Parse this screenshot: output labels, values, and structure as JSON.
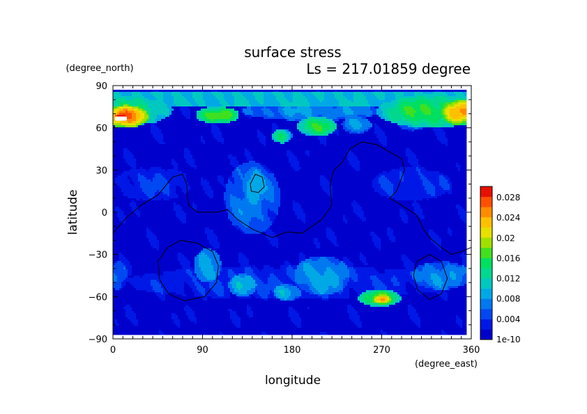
{
  "chart_data": {
    "type": "heatmap",
    "title": "surface stress",
    "subtitle": "Ls = 217.01859 degree",
    "xlabel": "longitude",
    "ylabel": "latitude",
    "x_unit": "(degree_east)",
    "y_unit": "(degree_north)",
    "xlim": [
      0,
      360
    ],
    "ylim": [
      -90,
      90
    ],
    "x_ticks": [
      "0",
      "90",
      "180",
      "270",
      "360"
    ],
    "y_ticks": [
      "90",
      "60",
      "30",
      "0",
      "−30",
      "−60",
      "−90"
    ],
    "colorbar": {
      "labels": [
        "0.028",
        "0.024",
        "0.02",
        "0.016",
        "0.012",
        "0.008",
        "0.004",
        "1e-10"
      ],
      "min": 0,
      "max": 0.03,
      "colors": [
        "#0000cc",
        "#0018e6",
        "#0048f2",
        "#0078f0",
        "#00a8e6",
        "#00c8c0",
        "#00d890",
        "#00e060",
        "#40e020",
        "#a0e000",
        "#e8e000",
        "#ffc000",
        "#ff8c00",
        "#ff5000",
        "#e81000"
      ]
    },
    "background_value": 0.001,
    "features": [
      {
        "name": "north-polar-band",
        "shape": "rect",
        "lon": [
          0,
          360
        ],
        "lat": [
          75,
          86
        ],
        "value": 0.01
      },
      {
        "name": "north-band-east",
        "shape": "ellipse",
        "lon": 320,
        "lat": 72,
        "rlon": 55,
        "rlat": 12,
        "value": 0.016
      },
      {
        "name": "north-band-west",
        "shape": "ellipse",
        "lon": 20,
        "lat": 73,
        "rlon": 40,
        "rlat": 11,
        "value": 0.014
      },
      {
        "name": "north-wave-mid",
        "shape": "ellipse",
        "lon": 200,
        "lat": 72,
        "rlon": 70,
        "rlat": 7,
        "value": 0.008
      },
      {
        "name": "north-max-west",
        "shape": "ellipse",
        "lon": 14,
        "lat": 68,
        "rlon": 22,
        "rlat": 8,
        "value": 0.026
      },
      {
        "name": "north-max-east",
        "shape": "ellipse",
        "lon": 348,
        "lat": 71,
        "rlon": 20,
        "rlat": 9,
        "value": 0.024
      },
      {
        "name": "north-peak",
        "shape": "ellipse",
        "lon": 8,
        "lat": 68,
        "rlon": 8,
        "rlat": 3,
        "value": 0.031
      },
      {
        "name": "n-blob-100",
        "shape": "ellipse",
        "lon": 105,
        "lat": 69,
        "rlon": 22,
        "rlat": 6,
        "value": 0.018
      },
      {
        "name": "n-blob-200",
        "shape": "ellipse",
        "lon": 205,
        "lat": 61,
        "rlon": 20,
        "rlat": 7,
        "value": 0.016
      },
      {
        "name": "n-blob-170",
        "shape": "ellipse",
        "lon": 170,
        "lat": 54,
        "rlon": 10,
        "rlat": 5,
        "value": 0.014
      },
      {
        "name": "n-blob-240",
        "shape": "ellipse",
        "lon": 245,
        "lat": 62,
        "rlon": 15,
        "rlat": 6,
        "value": 0.009
      },
      {
        "name": "n-blob-300",
        "shape": "ellipse",
        "lon": 300,
        "lat": 64,
        "rlon": 15,
        "rlat": 6,
        "value": 0.008
      },
      {
        "name": "tharsis-plume",
        "shape": "ellipse",
        "lon": 140,
        "lat": 10,
        "rlon": 28,
        "rlat": 26,
        "value": 0.007
      },
      {
        "name": "tharsis-core",
        "shape": "ellipse",
        "lon": 142,
        "lat": 18,
        "rlon": 12,
        "rlat": 14,
        "value": 0.01
      },
      {
        "name": "mid-lat-patch-a",
        "shape": "ellipse",
        "lon": 40,
        "lat": 20,
        "rlon": 40,
        "rlat": 12,
        "value": 0.004
      },
      {
        "name": "mid-lat-patch-b",
        "shape": "ellipse",
        "lon": 300,
        "lat": 20,
        "rlon": 40,
        "rlat": 12,
        "value": 0.004
      },
      {
        "name": "s-blob-95",
        "shape": "ellipse",
        "lon": 95,
        "lat": -38,
        "rlon": 14,
        "rlat": 12,
        "value": 0.01
      },
      {
        "name": "s-blob-130",
        "shape": "ellipse",
        "lon": 130,
        "lat": -52,
        "rlon": 14,
        "rlat": 8,
        "value": 0.011
      },
      {
        "name": "s-blob-210",
        "shape": "ellipse",
        "lon": 210,
        "lat": -45,
        "rlon": 28,
        "rlat": 14,
        "value": 0.009
      },
      {
        "name": "s-blob-175",
        "shape": "ellipse",
        "lon": 175,
        "lat": -57,
        "rlon": 14,
        "rlat": 6,
        "value": 0.01
      },
      {
        "name": "s-blob-330",
        "shape": "ellipse",
        "lon": 330,
        "lat": -45,
        "rlon": 30,
        "rlat": 10,
        "value": 0.008
      },
      {
        "name": "s-band",
        "shape": "ellipse",
        "lon": 180,
        "lat": -50,
        "rlon": 170,
        "rlat": 12,
        "value": 0.004
      },
      {
        "name": "s-max-270",
        "shape": "ellipse",
        "lon": 268,
        "lat": -61,
        "rlon": 22,
        "rlat": 6,
        "value": 0.017
      },
      {
        "name": "s-peak-270",
        "shape": "ellipse",
        "lon": 270,
        "lat": -62,
        "rlon": 10,
        "rlat": 3.5,
        "value": 0.024
      },
      {
        "name": "west-edge",
        "shape": "ellipse",
        "lon": 5,
        "lat": -45,
        "rlon": 10,
        "rlat": 10,
        "value": 0.006
      }
    ],
    "contours": [
      {
        "name": "dichotomy-contour",
        "points": [
          [
            0,
            -15
          ],
          [
            12,
            -5
          ],
          [
            28,
            5
          ],
          [
            45,
            12
          ],
          [
            60,
            25
          ],
          [
            70,
            27
          ],
          [
            74,
            20
          ],
          [
            76,
            5
          ],
          [
            85,
            0
          ],
          [
            105,
            0
          ],
          [
            115,
            2
          ],
          [
            125,
            -5
          ],
          [
            140,
            -12
          ],
          [
            160,
            -18
          ],
          [
            175,
            -14
          ],
          [
            190,
            -15
          ],
          [
            200,
            -10
          ],
          [
            210,
            -5
          ],
          [
            220,
            5
          ],
          [
            218,
            20
          ],
          [
            222,
            30
          ],
          [
            230,
            35
          ],
          [
            238,
            45
          ],
          [
            250,
            50
          ],
          [
            265,
            48
          ],
          [
            280,
            42
          ],
          [
            290,
            38
          ],
          [
            293,
            30
          ],
          [
            285,
            15
          ],
          [
            278,
            10
          ],
          [
            290,
            5
          ],
          [
            305,
            -2
          ],
          [
            312,
            -12
          ],
          [
            318,
            -18
          ],
          [
            330,
            -25
          ],
          [
            340,
            -30
          ],
          [
            350,
            -28
          ],
          [
            360,
            -25
          ]
        ]
      },
      {
        "name": "hellas-contour",
        "points": [
          [
            45,
            -35
          ],
          [
            55,
            -25
          ],
          [
            68,
            -20
          ],
          [
            85,
            -22
          ],
          [
            100,
            -28
          ],
          [
            106,
            -38
          ],
          [
            104,
            -50
          ],
          [
            92,
            -60
          ],
          [
            72,
            -63
          ],
          [
            56,
            -58
          ],
          [
            47,
            -48
          ],
          [
            45,
            -35
          ]
        ]
      },
      {
        "name": "argyre-contour",
        "points": [
          [
            305,
            -35
          ],
          [
            318,
            -30
          ],
          [
            330,
            -35
          ],
          [
            336,
            -47
          ],
          [
            330,
            -58
          ],
          [
            318,
            -62
          ],
          [
            306,
            -55
          ],
          [
            302,
            -45
          ],
          [
            305,
            -35
          ]
        ]
      },
      {
        "name": "volcano-contour",
        "points": [
          [
            138,
            20
          ],
          [
            143,
            27
          ],
          [
            150,
            25
          ],
          [
            152,
            18
          ],
          [
            146,
            14
          ],
          [
            139,
            15
          ],
          [
            138,
            20
          ]
        ]
      }
    ],
    "white_patch": {
      "lon": [
        2,
        14
      ],
      "lat": [
        65,
        68
      ]
    }
  }
}
